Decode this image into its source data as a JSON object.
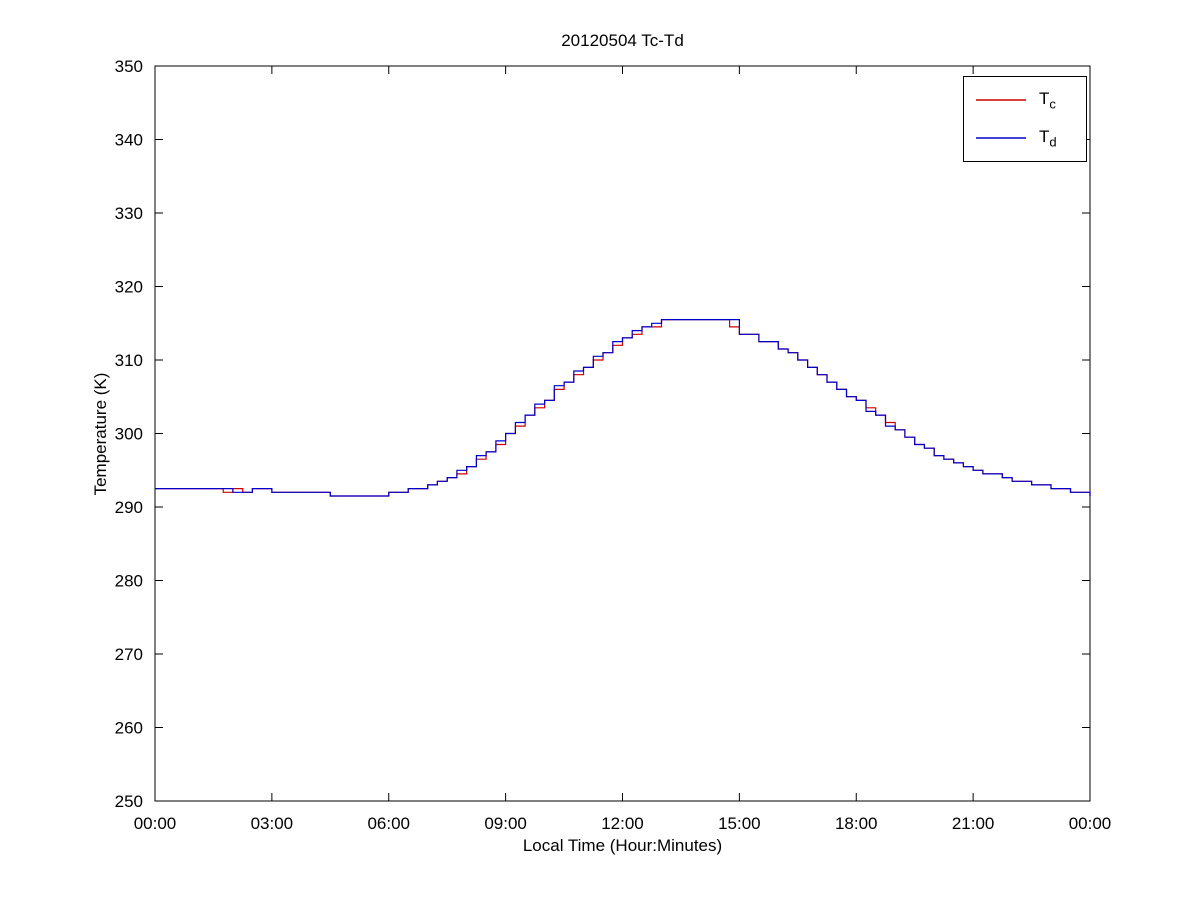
{
  "figure": {
    "background": "#FFFFFF"
  },
  "chart_data": {
    "type": "line",
    "title": "20120504 Tc-Td",
    "xlabel": "Local Time (Hour:Minutes)",
    "ylabel": "Temperature (K)",
    "xlim": [
      0,
      24
    ],
    "ylim": [
      250,
      350
    ],
    "grid": false,
    "legend_position": "top-right",
    "x_ticks": [
      0,
      3,
      6,
      9,
      12,
      15,
      18,
      21,
      24
    ],
    "x_tick_labels": [
      "00:00",
      "03:00",
      "06:00",
      "09:00",
      "12:00",
      "15:00",
      "18:00",
      "21:00",
      "00:00"
    ],
    "y_ticks": [
      250,
      260,
      270,
      280,
      290,
      300,
      310,
      320,
      330,
      340,
      350
    ],
    "y_tick_labels": [
      "250",
      "260",
      "270",
      "280",
      "290",
      "300",
      "310",
      "320",
      "330",
      "340",
      "350"
    ],
    "x_start": 0,
    "x_step": 0.25,
    "x_units": "hours",
    "series": [
      {
        "name": "Tc",
        "legend_main": "T",
        "legend_sub": "c",
        "color": "#CC0000",
        "values": [
          292.5,
          292.5,
          292.5,
          292.5,
          292.5,
          292.5,
          292.5,
          292.0,
          292.5,
          292.0,
          292.5,
          292.5,
          292.0,
          292.0,
          292.0,
          292.0,
          292.0,
          292.0,
          291.5,
          291.5,
          291.5,
          291.5,
          291.5,
          291.5,
          292.0,
          292.0,
          292.5,
          292.5,
          293.0,
          293.5,
          294.0,
          294.5,
          295.5,
          296.5,
          297.5,
          298.5,
          300.0,
          301.0,
          302.5,
          303.5,
          304.5,
          306.0,
          307.0,
          308.0,
          309.0,
          310.0,
          311.0,
          312.0,
          313.0,
          313.5,
          314.5,
          314.5,
          315.5,
          315.5,
          315.5,
          315.5,
          315.5,
          315.5,
          315.5,
          314.5,
          313.5,
          313.5,
          312.5,
          312.5,
          311.5,
          311.0,
          310.0,
          309.0,
          308.0,
          307.0,
          306.0,
          305.0,
          304.5,
          303.5,
          302.5,
          301.5,
          300.5,
          299.5,
          298.5,
          298.0,
          297.0,
          296.5,
          296.0,
          295.5,
          295.0,
          294.5,
          294.5,
          294.0,
          293.5,
          293.5,
          293.0,
          293.0,
          292.5,
          292.5,
          292.0,
          292.0,
          291.5
        ]
      },
      {
        "name": "Td",
        "legend_main": "T",
        "legend_sub": "d",
        "color": "#0000CC",
        "values": [
          292.5,
          292.5,
          292.5,
          292.5,
          292.5,
          292.5,
          292.5,
          292.5,
          292.0,
          292.0,
          292.5,
          292.5,
          292.0,
          292.0,
          292.0,
          292.0,
          292.0,
          292.0,
          291.5,
          291.5,
          291.5,
          291.5,
          291.5,
          291.5,
          292.0,
          292.0,
          292.5,
          292.5,
          293.0,
          293.5,
          294.0,
          295.0,
          295.5,
          297.0,
          297.5,
          299.0,
          300.0,
          301.5,
          302.5,
          304.0,
          304.5,
          306.5,
          307.0,
          308.5,
          309.0,
          310.5,
          311.0,
          312.5,
          313.0,
          314.0,
          314.5,
          315.0,
          315.5,
          315.5,
          315.5,
          315.5,
          315.5,
          315.5,
          315.5,
          315.5,
          313.5,
          313.5,
          312.5,
          312.5,
          311.5,
          311.0,
          310.0,
          309.0,
          308.0,
          307.0,
          306.0,
          305.0,
          304.5,
          303.0,
          302.5,
          301.0,
          300.5,
          299.5,
          298.5,
          298.0,
          297.0,
          296.5,
          296.0,
          295.5,
          295.0,
          294.5,
          294.5,
          294.0,
          293.5,
          293.5,
          293.0,
          293.0,
          292.5,
          292.5,
          292.0,
          292.0,
          291.5
        ]
      }
    ]
  }
}
